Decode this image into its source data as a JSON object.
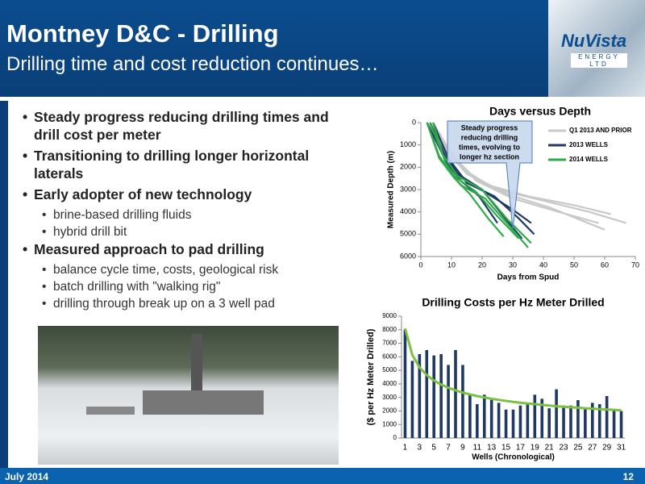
{
  "header": {
    "title": "Montney D&C - Drilling",
    "subtitle": "Drilling time and cost reduction continues…",
    "logo": "NuVista",
    "logo_sub": "ENERGY LTD"
  },
  "bullets": [
    {
      "text": "Steady progress reducing drilling times and drill cost per meter",
      "sub": []
    },
    {
      "text": "Transitioning to drilling longer horizontal laterals",
      "sub": []
    },
    {
      "text": "Early adopter of new technology",
      "sub": [
        "brine-based drilling fluids",
        "hybrid drill bit"
      ]
    },
    {
      "text": "Measured approach to pad drilling",
      "sub": [
        "balance cycle time, costs, geological risk",
        "batch drilling with \"walking rig\"",
        "drilling through break up on a 3 well pad"
      ]
    }
  ],
  "footer": {
    "date": "July 2014",
    "page": "12"
  },
  "chart_data": [
    {
      "type": "line",
      "title": "Days versus Depth",
      "xlabel": "Days from Spud",
      "ylabel": "Measured Depth (m)",
      "annotation": [
        "Steady progress",
        "reducing drilling",
        "times, evolving to",
        "longer hz section"
      ],
      "xlim": [
        0,
        70
      ],
      "xticks": [
        0,
        10,
        20,
        30,
        40,
        50,
        60,
        70
      ],
      "ylim": [
        0,
        6000
      ],
      "yticks": [
        0,
        1000,
        2000,
        3000,
        4000,
        5000,
        6000
      ],
      "y_inverted": true,
      "grid": false,
      "series": [
        {
          "name": "Q1 2013 AND PRIOR",
          "color": "#c8c8c8",
          "lines": [
            {
              "x": [
                2,
                8,
                15,
                25,
                40,
                55,
                67
              ],
              "values": [
                0,
                1200,
                2300,
                3000,
                3500,
                4000,
                4500
              ]
            },
            {
              "x": [
                3,
                9,
                17,
                28,
                42,
                60
              ],
              "values": [
                0,
                1300,
                2400,
                3200,
                3800,
                4800
              ]
            },
            {
              "x": [
                2,
                7,
                14,
                22,
                35,
                50,
                62
              ],
              "values": [
                0,
                1100,
                2100,
                2800,
                3300,
                3700,
                4100
              ]
            },
            {
              "x": [
                4,
                10,
                18,
                30,
                45,
                58
              ],
              "values": [
                0,
                1400,
                2600,
                3400,
                4000,
                4500
              ]
            }
          ]
        },
        {
          "name": "2013 WELLS",
          "color": "#1f3864",
          "lines": [
            {
              "x": [
                3,
                8,
                14,
                22,
                30,
                36
              ],
              "values": [
                0,
                1500,
                2500,
                3200,
                3900,
                4500
              ]
            },
            {
              "x": [
                2,
                7,
                12,
                20,
                27,
                33
              ],
              "values": [
                0,
                1400,
                2300,
                3000,
                4200,
                5200
              ]
            },
            {
              "x": [
                4,
                9,
                15,
                24,
                32,
                37
              ],
              "values": [
                0,
                1600,
                2700,
                3300,
                4300,
                5000
              ]
            },
            {
              "x": [
                3,
                8,
                13,
                19,
                25
              ],
              "values": [
                0,
                1700,
                2600,
                3300,
                4500
              ]
            }
          ]
        },
        {
          "name": "2014 WELLS",
          "color": "#2eaa4a",
          "lines": [
            {
              "x": [
                2,
                6,
                10,
                18,
                25,
                32
              ],
              "values": [
                0,
                1500,
                2300,
                3100,
                4200,
                5200
              ]
            },
            {
              "x": [
                3,
                7,
                12,
                20,
                28,
                36
              ],
              "values": [
                0,
                1400,
                2400,
                3000,
                4300,
                5400
              ]
            },
            {
              "x": [
                2,
                6,
                11,
                16,
                22,
                27
              ],
              "values": [
                0,
                1600,
                2500,
                3200,
                4300,
                5100
              ]
            },
            {
              "x": [
                4,
                8,
                13,
                21,
                30,
                35
              ],
              "values": [
                0,
                1800,
                2800,
                3400,
                4800,
                5600
              ]
            }
          ]
        }
      ]
    },
    {
      "type": "bar",
      "title": "Drilling Costs per Hz Meter Drilled",
      "xlabel": "Wells (Chronological)",
      "ylabel": "($ per Hz Meter Drilled)",
      "categories": [
        "1",
        null,
        "3",
        null,
        "5",
        null,
        "7",
        null,
        "9",
        null,
        "11",
        null,
        "13",
        null,
        "15",
        null,
        "17",
        null,
        "19",
        null,
        "21",
        null,
        "23",
        null,
        "25",
        null,
        "27",
        null,
        "29",
        null,
        "31"
      ],
      "values": [
        8000,
        5700,
        6200,
        6500,
        6100,
        6200,
        5400,
        6500,
        5400,
        3200,
        2500,
        3200,
        2900,
        2600,
        2100,
        2100,
        2400,
        2600,
        3200,
        2900,
        2200,
        3600,
        2400,
        2400,
        2800,
        2200,
        2600,
        2500,
        3100,
        2100,
        2000
      ],
      "color": "#1f3864",
      "trendline": {
        "color": "#7dc142",
        "values": [
          8100,
          6140,
          5220,
          4650,
          4250,
          3950,
          3720,
          3520,
          3360,
          3220,
          3100,
          3000,
          2900,
          2820,
          2740,
          2670,
          2610,
          2550,
          2500,
          2450,
          2400,
          2350,
          2310,
          2270,
          2240,
          2200,
          2170,
          2140,
          2110,
          2080,
          2050
        ]
      },
      "ylim": [
        0,
        9000
      ],
      "yticks": [
        0,
        1000,
        2000,
        3000,
        4000,
        5000,
        6000,
        7000,
        8000,
        9000
      ],
      "grid": false
    }
  ]
}
